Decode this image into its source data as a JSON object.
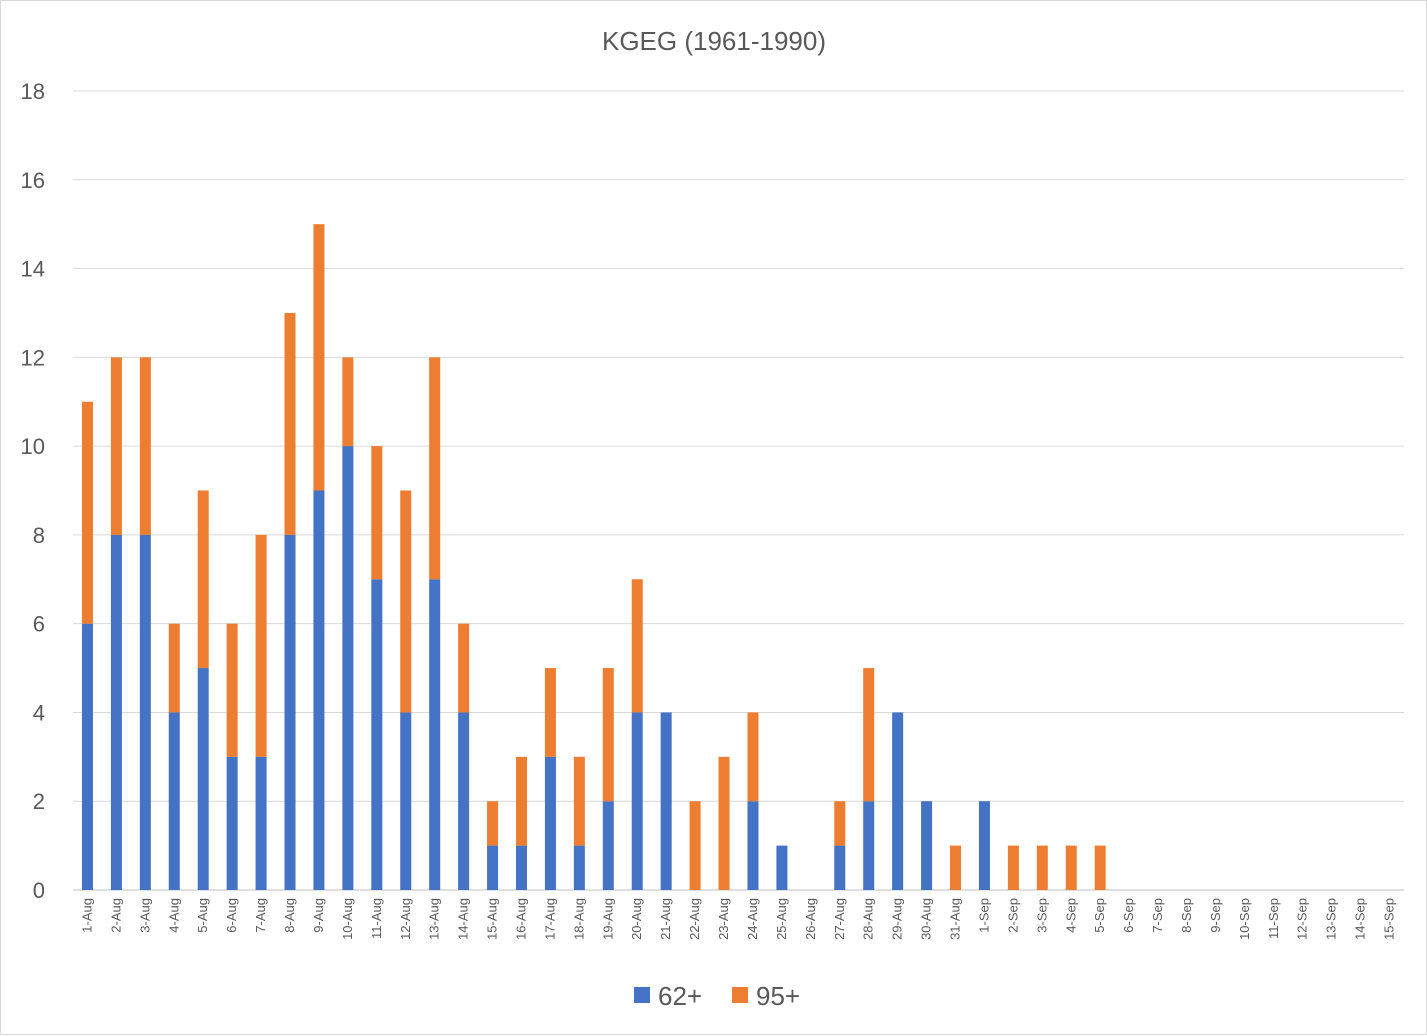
{
  "chart_data": {
    "type": "bar",
    "stacked": true,
    "title": "KGEG (1961-1990)",
    "xlabel": "",
    "ylabel": "",
    "ylim": [
      0,
      18
    ],
    "yticks": [
      0,
      2,
      4,
      6,
      8,
      10,
      12,
      14,
      16,
      18
    ],
    "grid": true,
    "legend_position": "bottom",
    "categories": [
      "1-Aug",
      "2-Aug",
      "3-Aug",
      "4-Aug",
      "5-Aug",
      "6-Aug",
      "7-Aug",
      "8-Aug",
      "9-Aug",
      "10-Aug",
      "11-Aug",
      "12-Aug",
      "13-Aug",
      "14-Aug",
      "15-Aug",
      "16-Aug",
      "17-Aug",
      "18-Aug",
      "19-Aug",
      "20-Aug",
      "21-Aug",
      "22-Aug",
      "23-Aug",
      "24-Aug",
      "25-Aug",
      "26-Aug",
      "27-Aug",
      "28-Aug",
      "29-Aug",
      "30-Aug",
      "31-Aug",
      "1-Sep",
      "2-Sep",
      "3-Sep",
      "4-Sep",
      "5-Sep",
      "6-Sep",
      "7-Sep",
      "8-Sep",
      "9-Sep",
      "10-Sep",
      "11-Sep",
      "12-Sep",
      "13-Sep",
      "14-Sep",
      "15-Sep"
    ],
    "series": [
      {
        "name": "62+",
        "color": "#4472c4",
        "values": [
          6,
          8,
          8,
          4,
          5,
          3,
          3,
          8,
          9,
          10,
          7,
          4,
          7,
          4,
          1,
          1,
          3,
          1,
          2,
          4,
          4,
          0,
          0,
          2,
          1,
          0,
          1,
          2,
          4,
          2,
          0,
          2,
          0,
          0,
          0,
          0,
          0,
          0,
          0,
          0,
          0,
          0,
          0,
          0,
          0,
          0
        ]
      },
      {
        "name": "95+",
        "color": "#ed7d31",
        "values": [
          5,
          4,
          4,
          2,
          4,
          3,
          5,
          5,
          6,
          2,
          3,
          5,
          5,
          2,
          1,
          2,
          2,
          2,
          3,
          3,
          0,
          2,
          3,
          2,
          0,
          0,
          1,
          3,
          0,
          0,
          1,
          0,
          1,
          1,
          1,
          1,
          0,
          0,
          0,
          0,
          0,
          0,
          0,
          0,
          0,
          0
        ]
      }
    ]
  }
}
